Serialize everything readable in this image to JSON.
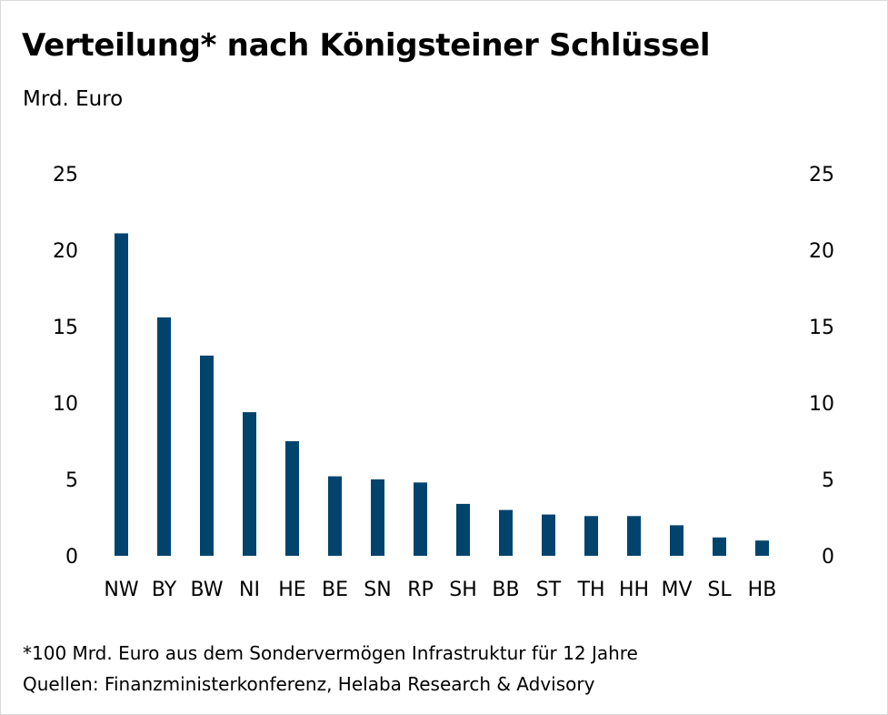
{
  "chart_data": {
    "type": "bar",
    "title": "Verteilung* nach Königsteiner Schlüssel",
    "subtitle": "Mrd. Euro",
    "categories": [
      "NW",
      "BY",
      "BW",
      "NI",
      "HE",
      "BE",
      "SN",
      "RP",
      "SH",
      "BB",
      "ST",
      "TH",
      "HH",
      "MV",
      "SL",
      "HB"
    ],
    "values": [
      21.1,
      15.6,
      13.1,
      9.4,
      7.5,
      5.2,
      5.0,
      4.8,
      3.4,
      3.0,
      2.7,
      2.6,
      2.6,
      2.0,
      1.2,
      1.0
    ],
    "ylim": [
      0,
      25
    ],
    "yticks": [
      0,
      5,
      10,
      15,
      20,
      25
    ],
    "dual_y_axis": true,
    "grid": false,
    "bar_color": "#00446e"
  },
  "footnotes": {
    "note": "*100 Mrd. Euro aus dem Sondervermögen Infrastruktur für 12 Jahre",
    "sources": "Quellen: Finanzministerkonferenz, Helaba Research & Advisory"
  }
}
